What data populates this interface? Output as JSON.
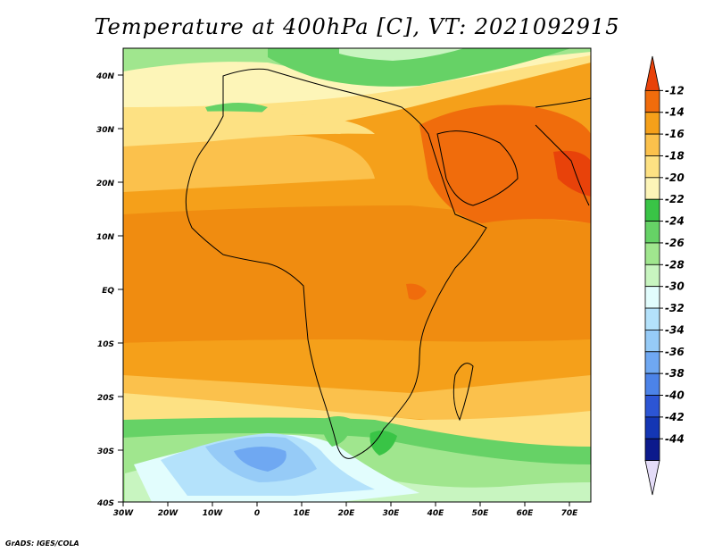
{
  "title": "Temperature at 400hPa [C], VT: 2021092915",
  "credit": "GrADS: IGES/COLA",
  "map": {
    "projection": "lat-lon",
    "lon_range": [
      -30,
      75
    ],
    "lat_range": [
      -40,
      45
    ],
    "lat_labels": [
      "40N",
      "30N",
      "20N",
      "10N",
      "EQ",
      "10S",
      "20S",
      "30S",
      "40S"
    ],
    "lon_labels": [
      "30W",
      "20W",
      "10W",
      "0",
      "10E",
      "20E",
      "30E",
      "40E",
      "50E",
      "60E",
      "70E"
    ]
  },
  "colorbar": {
    "labels": [
      "-12",
      "-14",
      "-16",
      "-18",
      "-20",
      "-22",
      "-24",
      "-26",
      "-28",
      "-30",
      "-32",
      "-34",
      "-36",
      "-38",
      "-40",
      "-42",
      "-44"
    ],
    "colors": [
      "#e8420a",
      "#f06c0c",
      "#f5a01a",
      "#fbc14c",
      "#fde183",
      "#fdf5b8",
      "#39c446",
      "#66d266",
      "#a0e68e",
      "#c8f5c0",
      "#e2fdfd",
      "#b4e2fb",
      "#96cbf7",
      "#6fa8f2",
      "#4c83e8",
      "#2c55d4",
      "#1436b4",
      "#0c1a8c",
      "#e4dcf8"
    ]
  },
  "legend_colors": {
    "coast": "#000000"
  }
}
